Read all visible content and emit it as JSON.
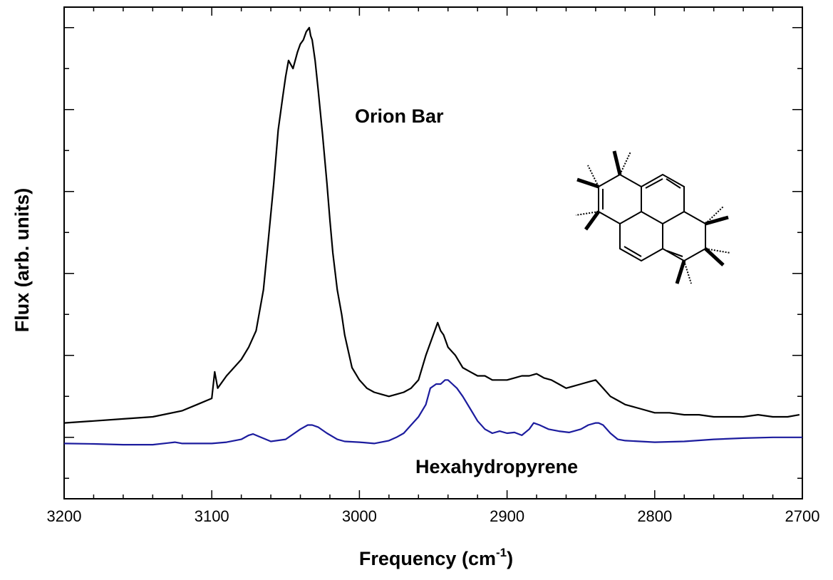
{
  "chart_data": {
    "type": "line",
    "xlabel": "Frequency (cm",
    "xlabel_sup": "-1",
    "xlabel_close": ")",
    "ylabel": "Flux (arb. units)",
    "xlim": [
      3200,
      2700
    ],
    "x_reversed": true,
    "ylim": [
      -0.15,
      1.05
    ],
    "x_ticks": [
      "3200",
      "3100",
      "3000",
      "2900",
      "2800",
      "2700"
    ],
    "x_tick_values": [
      3200,
      3100,
      3000,
      2900,
      2800,
      2700
    ],
    "y_tick_labels_shown": false,
    "grid": false,
    "annotations": [
      "Orion Bar",
      "Hexahydropyrene"
    ],
    "series": [
      {
        "color": "#000000",
        "x": [
          3200,
          3180,
          3160,
          3140,
          3120,
          3110,
          3100,
          3098,
          3096,
          3090,
          3080,
          3075,
          3070,
          3065,
          3062,
          3058,
          3055,
          3052,
          3050,
          3048,
          3045,
          3042,
          3040,
          3038,
          3036,
          3034,
          3033,
          3032,
          3030,
          3028,
          3025,
          3022,
          3020,
          3018,
          3015,
          3012,
          3010,
          3005,
          3000,
          2995,
          2990,
          2985,
          2980,
          2975,
          2970,
          2965,
          2960,
          2955,
          2950,
          2947,
          2945,
          2943,
          2940,
          2935,
          2930,
          2925,
          2920,
          2915,
          2910,
          2905,
          2900,
          2895,
          2890,
          2885,
          2880,
          2875,
          2870,
          2865,
          2860,
          2855,
          2850,
          2845,
          2840,
          2835,
          2830,
          2825,
          2820,
          2810,
          2800,
          2790,
          2780,
          2770,
          2760,
          2750,
          2740,
          2730,
          2720,
          2710,
          2702
        ],
        "y": [
          0.035,
          0.04,
          0.045,
          0.05,
          0.065,
          0.08,
          0.095,
          0.16,
          0.12,
          0.15,
          0.19,
          0.22,
          0.26,
          0.36,
          0.47,
          0.62,
          0.75,
          0.83,
          0.88,
          0.92,
          0.9,
          0.94,
          0.96,
          0.97,
          0.99,
          1.0,
          0.98,
          0.97,
          0.92,
          0.85,
          0.74,
          0.62,
          0.53,
          0.45,
          0.36,
          0.3,
          0.25,
          0.17,
          0.14,
          0.12,
          0.11,
          0.105,
          0.1,
          0.105,
          0.11,
          0.12,
          0.14,
          0.2,
          0.25,
          0.28,
          0.26,
          0.25,
          0.22,
          0.2,
          0.17,
          0.16,
          0.15,
          0.15,
          0.14,
          0.14,
          0.14,
          0.145,
          0.15,
          0.15,
          0.155,
          0.145,
          0.14,
          0.13,
          0.12,
          0.125,
          0.13,
          0.135,
          0.14,
          0.12,
          0.1,
          0.09,
          0.08,
          0.07,
          0.06,
          0.06,
          0.055,
          0.055,
          0.05,
          0.05,
          0.05,
          0.055,
          0.05,
          0.05,
          0.055
        ]
      },
      {
        "color": "#1c1c9e",
        "x": [
          3200,
          3180,
          3160,
          3140,
          3130,
          3125,
          3120,
          3100,
          3090,
          3080,
          3075,
          3072,
          3068,
          3060,
          3050,
          3040,
          3035,
          3032,
          3028,
          3022,
          3015,
          3010,
          3000,
          2990,
          2980,
          2975,
          2970,
          2965,
          2960,
          2955,
          2952,
          2948,
          2945,
          2942,
          2940,
          2937,
          2934,
          2930,
          2925,
          2920,
          2915,
          2910,
          2905,
          2900,
          2895,
          2890,
          2885,
          2882,
          2878,
          2872,
          2865,
          2858,
          2850,
          2845,
          2840,
          2838,
          2835,
          2830,
          2825,
          2820,
          2810,
          2800,
          2780,
          2760,
          2740,
          2720,
          2700
        ],
        "y": [
          -0.015,
          -0.016,
          -0.018,
          -0.018,
          -0.014,
          -0.012,
          -0.015,
          -0.015,
          -0.012,
          -0.005,
          0.005,
          0.008,
          0.002,
          -0.01,
          -0.005,
          0.02,
          0.03,
          0.03,
          0.025,
          0.01,
          -0.005,
          -0.01,
          -0.012,
          -0.015,
          -0.008,
          0.0,
          0.01,
          0.03,
          0.05,
          0.08,
          0.12,
          0.13,
          0.13,
          0.14,
          0.14,
          0.13,
          0.12,
          0.1,
          0.07,
          0.04,
          0.02,
          0.01,
          0.015,
          0.01,
          0.012,
          0.005,
          0.02,
          0.035,
          0.03,
          0.02,
          0.015,
          0.012,
          0.02,
          0.03,
          0.035,
          0.035,
          0.03,
          0.01,
          -0.005,
          -0.008,
          -0.01,
          -0.012,
          -0.01,
          -0.005,
          -0.002,
          0.0,
          0.0
        ]
      }
    ]
  }
}
